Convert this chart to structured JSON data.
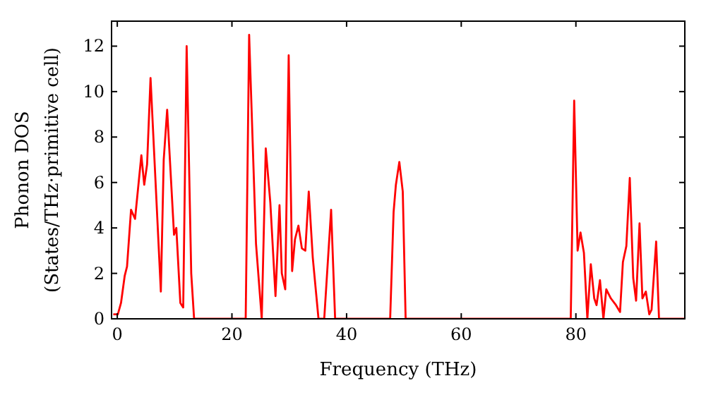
{
  "chart_data": {
    "type": "line",
    "xlabel": "Frequency (THz)",
    "ylabel": "Phonon DOS\n(States/THz·primitive cell)",
    "xlim": [
      -1,
      99
    ],
    "ylim": [
      0,
      13.1
    ],
    "xticks": [
      0,
      20,
      40,
      60,
      80
    ],
    "yticks": [
      0,
      2,
      4,
      6,
      8,
      10,
      12
    ],
    "grid": false,
    "marker": "none",
    "line_style": "solid",
    "series": [
      {
        "color": "#ff0000",
        "x": [
          -0.7,
          0.1,
          0.65,
          1.3,
          1.7,
          2.4,
          3.1,
          4.2,
          4.7,
          5.2,
          5.8,
          7.6,
          8.1,
          8.7,
          9.9,
          10.3,
          11.0,
          11.5,
          12.1,
          12.9,
          13.4,
          22.4,
          23.0,
          24.2,
          25.2,
          25.9,
          26.7,
          27.6,
          28.3,
          28.7,
          29.3,
          29.9,
          30.5,
          31.0,
          31.6,
          32.2,
          32.8,
          33.4,
          34.1,
          35.1,
          36.1,
          37.3,
          38.0,
          47.6,
          48.2,
          48.6,
          49.2,
          49.8,
          50.3,
          79.1,
          79.7,
          80.3,
          80.8,
          81.4,
          82.0,
          82.6,
          83.2,
          83.6,
          84.2,
          84.8,
          85.3,
          86.1,
          87.0,
          87.7,
          88.2,
          88.8,
          89.4,
          90.0,
          90.5,
          91.1,
          91.6,
          92.2,
          92.8,
          93.2,
          94.0,
          94.5,
          99
        ],
        "values": [
          0.2,
          0.2,
          0.7,
          1.9,
          2.3,
          4.8,
          4.4,
          7.2,
          5.9,
          6.8,
          10.6,
          1.2,
          7.0,
          9.2,
          3.7,
          4.0,
          0.7,
          0.5,
          12.0,
          2.0,
          0,
          0,
          12.5,
          3.3,
          0,
          7.5,
          5.1,
          1.0,
          5.0,
          2.0,
          1.3,
          11.6,
          2.1,
          3.5,
          4.1,
          3.1,
          3.0,
          5.6,
          2.7,
          0,
          0,
          4.8,
          0,
          0,
          4.7,
          5.9,
          6.9,
          5.6,
          0,
          0,
          9.6,
          3.0,
          3.8,
          2.9,
          0,
          2.4,
          0.9,
          0.6,
          1.7,
          0,
          1.3,
          0.9,
          0.6,
          0.3,
          2.5,
          3.2,
          6.2,
          1.8,
          0.8,
          4.2,
          0.9,
          1.2,
          0.2,
          0.4,
          3.4,
          0,
          0
        ]
      }
    ]
  }
}
